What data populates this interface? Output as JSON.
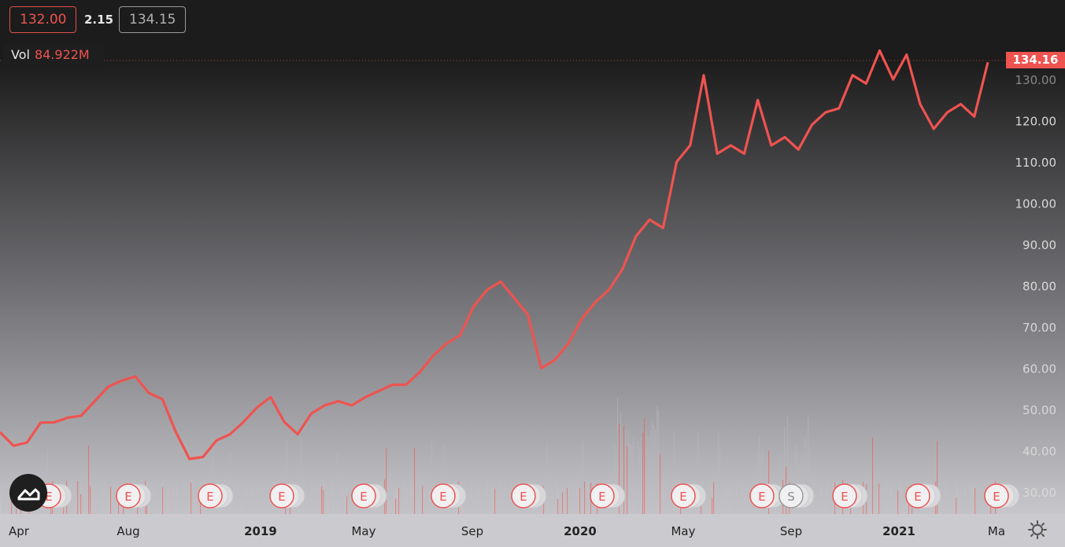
{
  "legend": {
    "open": "132.00",
    "change": "2.15",
    "close": "134.15",
    "vol_label": "Vol",
    "vol_value": "84.922M"
  },
  "last_price_label": "134.16",
  "y_ticks": [
    "30.00",
    "40.00",
    "50.00",
    "60.00",
    "70.00",
    "80.00",
    "90.00",
    "100.00",
    "110.00",
    "120.00",
    "130.00"
  ],
  "x_ticks": [
    "Apr",
    "Aug",
    "2019",
    "May",
    "Sep",
    "2020",
    "May",
    "Sep",
    "2021",
    "Ma"
  ],
  "event_markers": [
    "E",
    "E",
    "E",
    "E",
    "E",
    "E",
    "E",
    "E",
    "E",
    "E",
    "S",
    "E",
    "E",
    "E"
  ],
  "colors": {
    "line": "#ef5350",
    "bg_top": "#1a1a1a",
    "bg_bottom": "#d2d2d6",
    "volume": "#b8b8bd",
    "volume_down": "#ef5350",
    "axis_text": "#d8d8d8"
  },
  "icons": {
    "logo": "tradingview-logo-icon",
    "settings": "gear-icon"
  },
  "chart_data": {
    "type": "line",
    "series": [
      {
        "values": [
          44.5,
          41.2,
          42.0,
          46.8,
          46.9,
          48.0,
          48.5,
          52.0,
          55.5,
          57.0,
          58.0,
          54.0,
          52.5,
          44.5,
          38.0,
          38.5,
          42.5,
          44.0,
          47.0,
          50.5,
          53.0,
          47.0,
          44.0,
          49.0,
          51.0,
          52.0,
          51.0,
          53.0,
          54.5,
          56.0,
          56.0,
          59.0,
          63.0,
          66.0,
          68.0,
          75.0,
          79.0,
          81.0,
          77.0,
          73.0,
          60.0,
          62.0,
          66.0,
          72.0,
          76.0,
          79.0,
          84.0,
          92.0,
          96.0,
          94.0,
          110.0,
          114.0,
          131.0,
          112.0,
          114.0,
          112.0,
          125.0,
          114.0,
          116.0,
          113.0,
          119.0,
          122.0,
          123.0,
          131.0,
          129.0,
          137.0,
          130.0,
          136.0,
          124.0,
          118.0,
          122.0,
          124.0,
          121.0,
          134.16
        ]
      }
    ],
    "x_range": [
      "2018-03",
      "2021-03"
    ],
    "ylim": [
      26.0,
      138.0
    ],
    "volume_note": "volume histogram at bottom of chart"
  }
}
